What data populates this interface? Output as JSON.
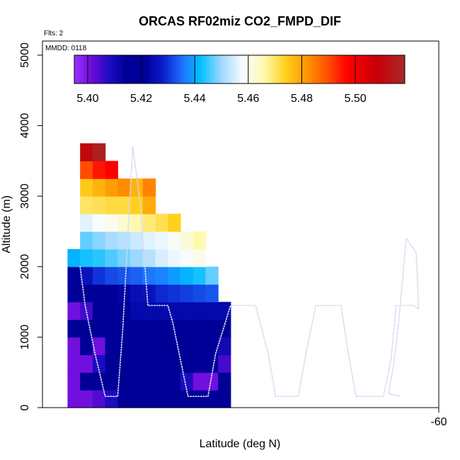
{
  "chart_data": {
    "type": "heatmap",
    "title": "ORCAS RF02miz CO2_FMPD_DIF",
    "flights_label": "Flts: 2",
    "date_label": "MMDD: 0118",
    "xlabel": "Latitude (deg N)",
    "ylabel": "Altitude (m)",
    "xlim": [
      -75.8,
      -60
    ],
    "ylim": [
      0,
      5200
    ],
    "x_ticks": [
      {
        "value": -60,
        "label": "-60"
      }
    ],
    "y_ticks": [
      {
        "value": 0,
        "label": "0"
      },
      {
        "value": 1000,
        "label": "1000"
      },
      {
        "value": 2000,
        "label": "2000"
      },
      {
        "value": 3000,
        "label": "3000"
      },
      {
        "value": 4000,
        "label": "4000"
      },
      {
        "value": 5000,
        "label": "5000"
      }
    ],
    "colorbar": {
      "min": 5.395,
      "max": 5.5185,
      "ticks": [
        {
          "value": 5.4,
          "label": "5.40"
        },
        {
          "value": 5.42,
          "label": "5.42"
        },
        {
          "value": 5.44,
          "label": "5.44"
        },
        {
          "value": 5.46,
          "label": "5.46"
        },
        {
          "value": 5.48,
          "label": "5.48"
        },
        {
          "value": 5.5,
          "label": "5.50"
        }
      ],
      "stops": [
        {
          "v": 5.395,
          "c": "#9b30ff"
        },
        {
          "v": 5.402,
          "c": "#6a0ad8"
        },
        {
          "v": 5.408,
          "c": "#1c0cc0"
        },
        {
          "v": 5.414,
          "c": "#000097"
        },
        {
          "v": 5.422,
          "c": "#00009c"
        },
        {
          "v": 5.428,
          "c": "#0c1ccc"
        },
        {
          "v": 5.436,
          "c": "#1e78ff"
        },
        {
          "v": 5.442,
          "c": "#00bfff"
        },
        {
          "v": 5.45,
          "c": "#9fd8ff"
        },
        {
          "v": 5.458,
          "c": "#f8fcff"
        },
        {
          "v": 5.466,
          "c": "#fff9b0"
        },
        {
          "v": 5.474,
          "c": "#ffd01c"
        },
        {
          "v": 5.482,
          "c": "#ff9500"
        },
        {
          "v": 5.49,
          "c": "#ff4c00"
        },
        {
          "v": 5.497,
          "c": "#ff0000"
        },
        {
          "v": 5.508,
          "c": "#c80008"
        },
        {
          "v": 5.5185,
          "c": "#a52a2a"
        }
      ]
    },
    "grid": {
      "x_start": -74.8,
      "x_step": 0.5,
      "y_start": 0,
      "y_step": 250
    },
    "cells": [
      {
        "row": 0,
        "values": [
          5.401,
          5.401,
          5.404,
          5.408,
          5.414,
          5.414,
          5.414,
          5.414,
          5.414,
          5.414,
          5.414,
          5.414,
          5.414
        ]
      },
      {
        "row": 1,
        "values": [
          5.401,
          5.414,
          5.414,
          5.414,
          5.414,
          5.414,
          5.414,
          5.414,
          5.414,
          5.408,
          5.401,
          5.401,
          5.414
        ]
      },
      {
        "row": 2,
        "values": [
          5.401,
          5.401,
          5.408,
          5.414,
          5.414,
          5.414,
          5.414,
          5.414,
          5.414,
          5.414,
          5.414,
          5.414,
          5.405
        ]
      },
      {
        "row": 3,
        "values": [
          5.401,
          5.414,
          5.401,
          5.414,
          5.414,
          5.414,
          5.414,
          5.414,
          5.414,
          5.414,
          5.414,
          5.414,
          5.41
        ]
      },
      {
        "row": 4,
        "values": [
          5.414,
          5.414,
          5.414,
          5.414,
          5.414,
          5.414,
          5.414,
          5.414,
          5.414,
          5.416,
          5.414,
          5.414,
          5.414
        ]
      },
      {
        "row": 5,
        "values": [
          5.401,
          5.405,
          5.414,
          5.414,
          5.416,
          5.424,
          5.424,
          5.424,
          5.424,
          5.424,
          5.424,
          5.424,
          5.424
        ]
      },
      {
        "row": 6,
        "values": [
          5.414,
          5.416,
          5.416,
          5.42,
          5.423,
          5.425,
          5.426,
          5.429,
          5.43,
          5.431,
          5.432,
          5.433,
          null
        ]
      },
      {
        "row": 7,
        "values": [
          5.421,
          5.426,
          5.43,
          5.432,
          5.433,
          5.434,
          5.436,
          5.437,
          5.439,
          5.441,
          5.443,
          5.447,
          null
        ]
      },
      {
        "row": 8,
        "values": [
          5.441,
          5.443,
          5.444,
          5.446,
          5.448,
          5.45,
          5.452,
          5.455,
          5.457,
          5.458,
          5.46,
          null,
          null
        ]
      },
      {
        "row": 9,
        "values": [
          null,
          5.447,
          5.449,
          5.451,
          5.452,
          5.454,
          5.456,
          5.457,
          5.459,
          5.462,
          5.466,
          null,
          null
        ]
      },
      {
        "row": 10,
        "values": [
          null,
          5.456,
          5.458,
          5.46,
          5.463,
          5.466,
          5.469,
          5.471,
          5.474,
          null,
          null,
          null,
          null
        ]
      },
      {
        "row": 11,
        "values": [
          null,
          5.47,
          5.471,
          5.472,
          5.472,
          5.474,
          5.479,
          null,
          null,
          null,
          null,
          null,
          null
        ]
      },
      {
        "row": 12,
        "values": [
          null,
          5.475,
          5.478,
          5.481,
          5.483,
          5.478,
          5.484,
          null,
          null,
          null,
          null,
          null,
          null
        ]
      },
      {
        "row": 13,
        "values": [
          null,
          5.49,
          5.495,
          5.497,
          null,
          null,
          null,
          null,
          null,
          null,
          null,
          null,
          null
        ]
      },
      {
        "row": 14,
        "values": [
          null,
          5.51,
          5.516,
          null,
          null,
          null,
          null,
          null,
          null,
          null,
          null,
          null,
          null
        ]
      }
    ],
    "flight_track": {
      "color": "#d8d8f0",
      "points": [
        [
          -74.3,
          2000
        ],
        [
          -74.1,
          1450
        ],
        [
          -73.7,
          760
        ],
        [
          -73.3,
          160
        ],
        [
          -72.8,
          160
        ],
        [
          -72.6,
          1100
        ],
        [
          -72.2,
          3700
        ],
        [
          -71.9,
          2900
        ],
        [
          -71.6,
          1450
        ],
        [
          -71.4,
          1450
        ],
        [
          -70.8,
          1450
        ],
        [
          -70.6,
          1200
        ],
        [
          -70.0,
          160
        ],
        [
          -69.2,
          160
        ],
        [
          -68.9,
          760
        ],
        [
          -68.3,
          1450
        ],
        [
          -67.3,
          1450
        ],
        [
          -66.8,
          760
        ],
        [
          -66.5,
          160
        ],
        [
          -65.6,
          160
        ],
        [
          -65.3,
          760
        ],
        [
          -64.9,
          1450
        ],
        [
          -63.9,
          1450
        ],
        [
          -63.6,
          760
        ],
        [
          -63.3,
          160
        ],
        [
          -62.2,
          160
        ],
        [
          -61.9,
          700
        ],
        [
          -61.7,
          1450
        ],
        [
          -61.0,
          1450
        ],
        [
          -60.8,
          1400
        ],
        [
          -60.9,
          2200
        ],
        [
          -61.3,
          2400
        ],
        [
          -61.6,
          1200
        ],
        [
          -61.8,
          600
        ],
        [
          -62.0,
          200
        ],
        [
          -61.5,
          160
        ]
      ]
    }
  }
}
